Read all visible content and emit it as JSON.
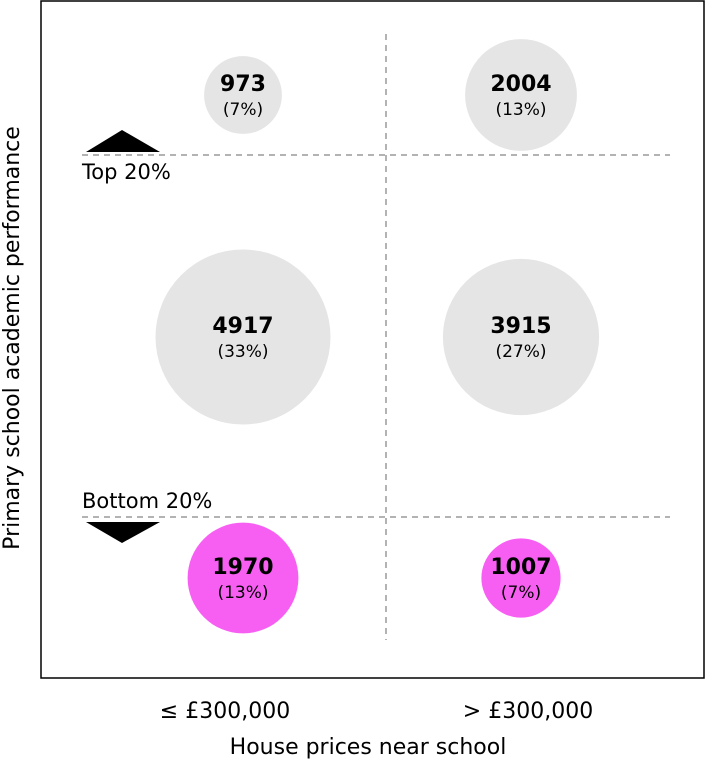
{
  "chart_data": {
    "type": "scatter",
    "subtype": "bubble-quadrant",
    "title": "",
    "xlabel": "House prices near school",
    "ylabel": "Primary school academic performance",
    "x_categories": [
      "≤ £300,000",
      "> £300,000"
    ],
    "y_bands": [
      "top",
      "middle",
      "bottom"
    ],
    "thresholds": {
      "top": "Top 20%",
      "bottom": "Bottom 20%"
    },
    "grid": "dashed quadrant dividers",
    "points": [
      {
        "x": "≤ £300,000",
        "y": "top",
        "count": 973,
        "count_label": "973",
        "share": 7,
        "share_label": "(7%)",
        "color": "#e5e5e5"
      },
      {
        "x": "> £300,000",
        "y": "top",
        "count": 2004,
        "count_label": "2004",
        "share": 13,
        "share_label": "(13%)",
        "color": "#e5e5e5"
      },
      {
        "x": "≤ £300,000",
        "y": "middle",
        "count": 4917,
        "count_label": "4917",
        "share": 33,
        "share_label": "(33%)",
        "color": "#e5e5e5"
      },
      {
        "x": "> £300,000",
        "y": "middle",
        "count": 3915,
        "count_label": "3915",
        "share": 27,
        "share_label": "(27%)",
        "color": "#e5e5e5"
      },
      {
        "x": "≤ £300,000",
        "y": "bottom",
        "count": 1970,
        "count_label": "1970",
        "share": 13,
        "share_label": "(13%)",
        "color": "#f75ff2"
      },
      {
        "x": "> £300,000",
        "y": "bottom",
        "count": 1007,
        "count_label": "1007",
        "share": 7,
        "share_label": "(7%)",
        "color": "#f75ff2"
      }
    ]
  }
}
